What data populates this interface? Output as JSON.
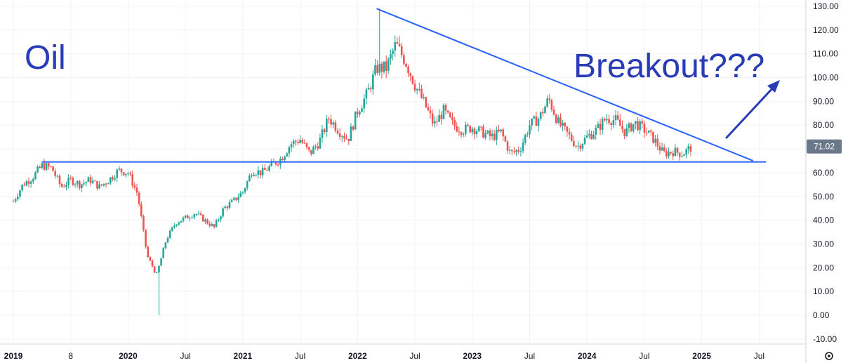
{
  "chart_data": {
    "type": "candlestick",
    "title": "",
    "xlabel": "",
    "ylabel": "",
    "ylim": [
      -15,
      133
    ],
    "y_ticks": [
      "130.00",
      "120.00",
      "110.00",
      "100.00",
      "90.00",
      "80.00",
      "70.00",
      "60.00",
      "50.00",
      "40.00",
      "30.00",
      "20.00",
      "10.00",
      "0.00",
      "-10.00"
    ],
    "x_ticks": [
      {
        "label": "2019",
        "date": "2019-01",
        "major": true
      },
      {
        "label": "8",
        "date": "2019-07",
        "major": false
      },
      {
        "label": "2020",
        "date": "2020-01",
        "major": true
      },
      {
        "label": "Jul",
        "date": "2020-07",
        "major": false
      },
      {
        "label": "2021",
        "date": "2021-01",
        "major": true
      },
      {
        "label": "Jul",
        "date": "2021-07",
        "major": false
      },
      {
        "label": "2022",
        "date": "2022-01",
        "major": true
      },
      {
        "label": "Jul",
        "date": "2022-07",
        "major": false
      },
      {
        "label": "2023",
        "date": "2023-01",
        "major": true
      },
      {
        "label": "Jul",
        "date": "2023-07",
        "major": false
      },
      {
        "label": "2024",
        "date": "2024-01",
        "major": true
      },
      {
        "label": "Jul",
        "date": "2024-07",
        "major": false
      },
      {
        "label": "2025",
        "date": "2025-01",
        "major": true
      },
      {
        "label": "Jul",
        "date": "2025-07",
        "major": false
      }
    ],
    "grid": true,
    "price_path": [
      [
        "2019-01",
        48
      ],
      [
        "2019-02",
        55
      ],
      [
        "2019-03",
        58
      ],
      [
        "2019-04",
        63
      ],
      [
        "2019-05",
        62
      ],
      [
        "2019-06",
        54
      ],
      [
        "2019-07",
        57
      ],
      [
        "2019-08",
        55
      ],
      [
        "2019-09",
        57
      ],
      [
        "2019-10",
        54
      ],
      [
        "2019-11",
        57
      ],
      [
        "2019-12",
        61
      ],
      [
        "2020-01",
        60
      ],
      [
        "2020-02",
        51
      ],
      [
        "2020-03",
        25
      ],
      [
        "2020-04",
        17
      ],
      [
        "2020-05",
        32
      ],
      [
        "2020-06",
        39
      ],
      [
        "2020-07",
        41
      ],
      [
        "2020-08",
        43
      ],
      [
        "2020-09",
        40
      ],
      [
        "2020-10",
        37
      ],
      [
        "2020-11",
        45
      ],
      [
        "2020-12",
        48
      ],
      [
        "2021-01",
        52
      ],
      [
        "2021-02",
        61
      ],
      [
        "2021-03",
        60
      ],
      [
        "2021-04",
        63
      ],
      [
        "2021-05",
        66
      ],
      [
        "2021-06",
        72
      ],
      [
        "2021-07",
        74
      ],
      [
        "2021-08",
        68
      ],
      [
        "2021-09",
        73
      ],
      [
        "2021-10",
        83
      ],
      [
        "2021-11",
        78
      ],
      [
        "2021-12",
        74
      ],
      [
        "2022-01",
        86
      ],
      [
        "2022-02",
        93
      ],
      [
        "2022-03",
        104
      ],
      [
        "2022-04",
        104
      ],
      [
        "2022-05",
        114
      ],
      [
        "2022-06",
        107
      ],
      [
        "2022-07",
        97
      ],
      [
        "2022-08",
        89
      ],
      [
        "2022-09",
        80
      ],
      [
        "2022-10",
        86
      ],
      [
        "2022-11",
        80
      ],
      [
        "2022-12",
        78
      ],
      [
        "2023-01",
        79
      ],
      [
        "2023-02",
        77
      ],
      [
        "2023-03",
        75
      ],
      [
        "2023-04",
        77
      ],
      [
        "2023-05",
        68
      ],
      [
        "2023-06",
        70
      ],
      [
        "2023-07",
        80
      ],
      [
        "2023-08",
        83
      ],
      [
        "2023-09",
        91
      ],
      [
        "2023-10",
        81
      ],
      [
        "2023-11",
        76
      ],
      [
        "2023-12",
        71
      ],
      [
        "2024-01",
        75
      ],
      [
        "2024-02",
        78
      ],
      [
        "2024-03",
        83
      ],
      [
        "2024-04",
        82
      ],
      [
        "2024-05",
        77
      ],
      [
        "2024-06",
        81
      ],
      [
        "2024-07",
        78
      ],
      [
        "2024-08",
        74
      ],
      [
        "2024-09",
        68
      ],
      [
        "2024-10",
        69
      ],
      [
        "2024-11",
        68
      ],
      [
        "2024-12",
        71
      ]
    ],
    "high_low_extremes": {
      "covid_low": {
        "date": "2020-04",
        "value": 0
      },
      "peak": {
        "date": "2022-03",
        "value": 129
      }
    },
    "colors": {
      "up": "#26a69a",
      "down": "#ef5350",
      "line": "#2962ff",
      "annotation": "#2a3bb8",
      "price_label_bg": "#6b7889"
    },
    "support_line": {
      "value": 64.5,
      "from": "2019-04",
      "to": "2025-07"
    },
    "resistance_line": {
      "from": {
        "date": "2022-03",
        "value": 129
      },
      "to": {
        "date": "2025-06",
        "value": 65
      }
    },
    "last_price": 71.02,
    "last_price_label": "71.02"
  },
  "annotations": {
    "title_text": "Oil",
    "breakout_text": "Breakout???"
  },
  "toolbar": {
    "settings_icon": "gear-icon"
  }
}
